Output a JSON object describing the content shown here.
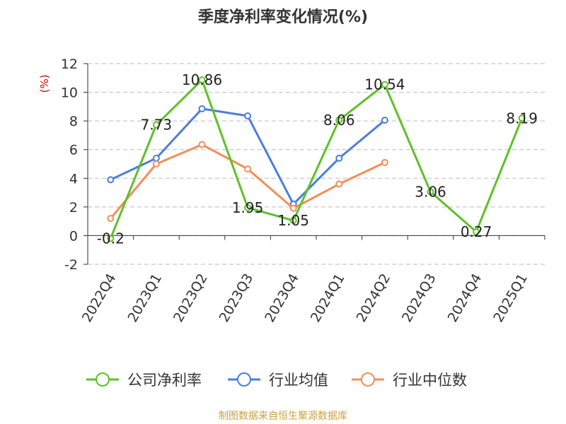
{
  "chart_data": {
    "type": "line",
    "title": "季度净利率变化情况(%)",
    "ylabel": "(%)",
    "xlabel": "",
    "ylim": [
      -2,
      12
    ],
    "yticks": [
      -2,
      0,
      2,
      4,
      6,
      8,
      10,
      12
    ],
    "grid": true,
    "legend_position": "bottom",
    "categories": [
      "2022Q4",
      "2023Q1",
      "2023Q2",
      "2023Q3",
      "2023Q4",
      "2024Q1",
      "2024Q2",
      "2024Q3",
      "2024Q4",
      "2025Q1"
    ],
    "series": [
      {
        "name": "公司净利率",
        "color": "#5ec129",
        "values": [
          -0.2,
          7.73,
          10.86,
          1.95,
          1.05,
          8.06,
          10.54,
          3.06,
          0.27,
          8.19
        ],
        "data_labels": [
          "-0.2",
          "7.73",
          "10.86",
          "1.95",
          "1.05",
          "8.06",
          "10.54",
          "3.06",
          "0.27",
          "8.19"
        ]
      },
      {
        "name": "行业均值",
        "color": "#4a7edb",
        "values": [
          3.9,
          5.4,
          8.85,
          8.35,
          2.2,
          5.4,
          8.05,
          null,
          null,
          null
        ]
      },
      {
        "name": "行业中位数",
        "color": "#f28e5a",
        "values": [
          1.2,
          5.0,
          6.35,
          4.65,
          1.9,
          3.6,
          5.1,
          null,
          null,
          null
        ]
      }
    ]
  },
  "footer": {
    "source": "制图数据来自恒生聚源数据库"
  }
}
